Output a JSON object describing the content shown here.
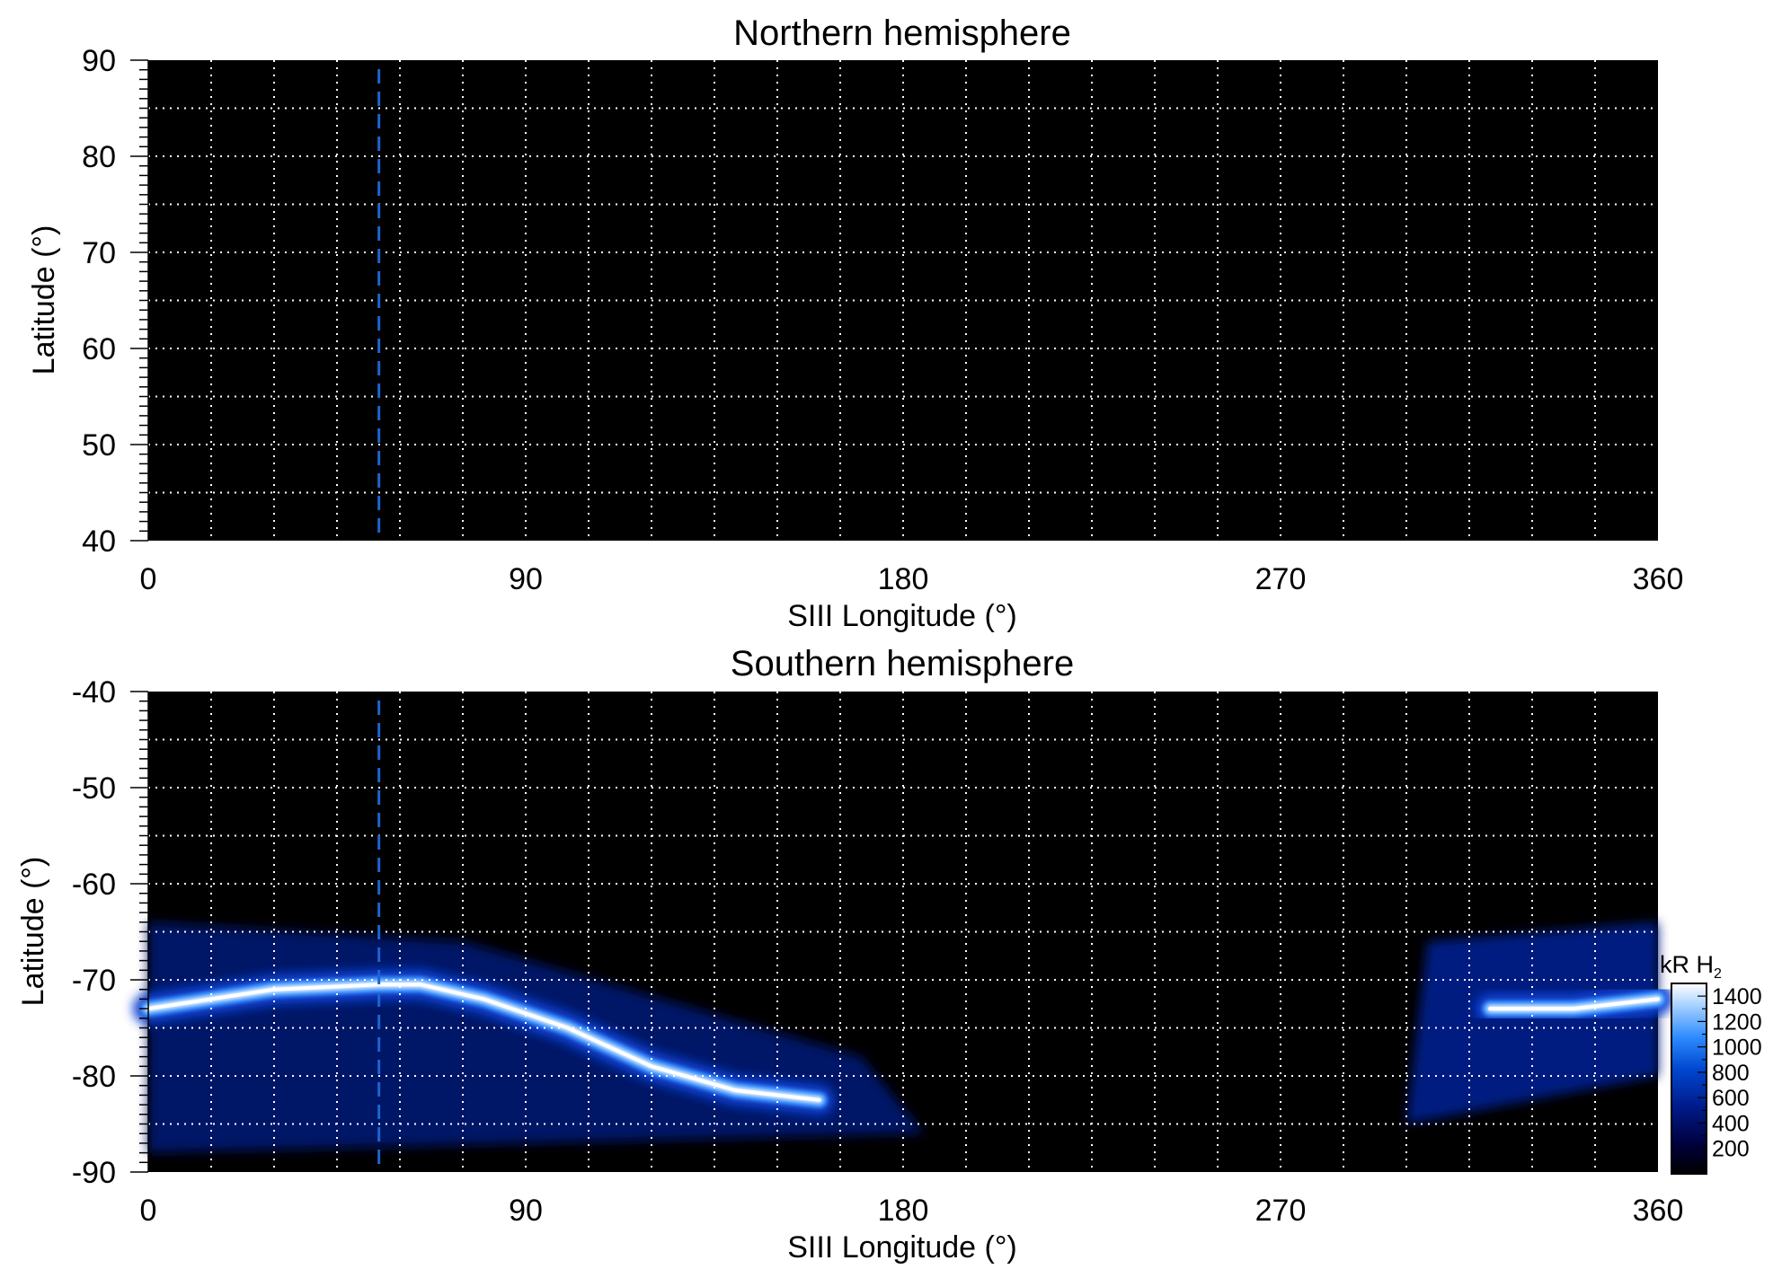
{
  "chart_data": [
    {
      "type": "heatmap",
      "title": "Northern hemisphere",
      "xlabel": "SIII Longitude (°)",
      "ylabel": "Latitude (°)",
      "xlim": [
        0,
        360
      ],
      "ylim": [
        40,
        90
      ],
      "xticks": [
        "0",
        "90",
        "180",
        "270",
        "360"
      ],
      "yticks": [
        "40",
        "50",
        "60",
        "70",
        "80",
        "90"
      ],
      "grid": true,
      "grid_x_step_deg": 15,
      "grid_y_step_deg": 5,
      "marker_longitude": 55,
      "emission": "none"
    },
    {
      "type": "heatmap",
      "title": "Southern hemisphere",
      "xlabel": "SIII Longitude (°)",
      "ylabel": "Latitude (°)",
      "xlim": [
        0,
        360
      ],
      "ylim": [
        -90,
        -40
      ],
      "xticks": [
        "0",
        "90",
        "180",
        "270",
        "360"
      ],
      "yticks": [
        "-40",
        "-50",
        "-60",
        "-70",
        "-80",
        "-90"
      ],
      "grid": true,
      "grid_x_step_deg": 15,
      "grid_y_step_deg": 5,
      "marker_longitude": 55,
      "auroral_oval": {
        "description_points": [
          [
            0,
            -73
          ],
          [
            30,
            -71
          ],
          [
            55,
            -70.5
          ],
          [
            65,
            -70.5
          ],
          [
            80,
            -72
          ],
          [
            100,
            -75
          ],
          [
            120,
            -79
          ],
          [
            140,
            -81.5
          ],
          [
            160,
            -82.5
          ]
        ],
        "return_branch": [
          [
            320,
            -73
          ],
          [
            340,
            -73
          ],
          [
            360,
            -72
          ]
        ],
        "peak_brightness_kR": 1400
      }
    }
  ],
  "colorbar": {
    "label": "kR H",
    "label_subscript": "2",
    "ticks": [
      "1400",
      "1200",
      "1000",
      "800",
      "600",
      "400",
      "200"
    ],
    "range": [
      0,
      1500
    ],
    "colors": [
      "#000000",
      "#00003a",
      "#001a8a",
      "#0047d0",
      "#2f8cff",
      "#9ccbff",
      "#ffffff"
    ]
  },
  "colors": {
    "background": "#000000",
    "grid": "#ffffff",
    "marker_line": "#1e64d2"
  }
}
